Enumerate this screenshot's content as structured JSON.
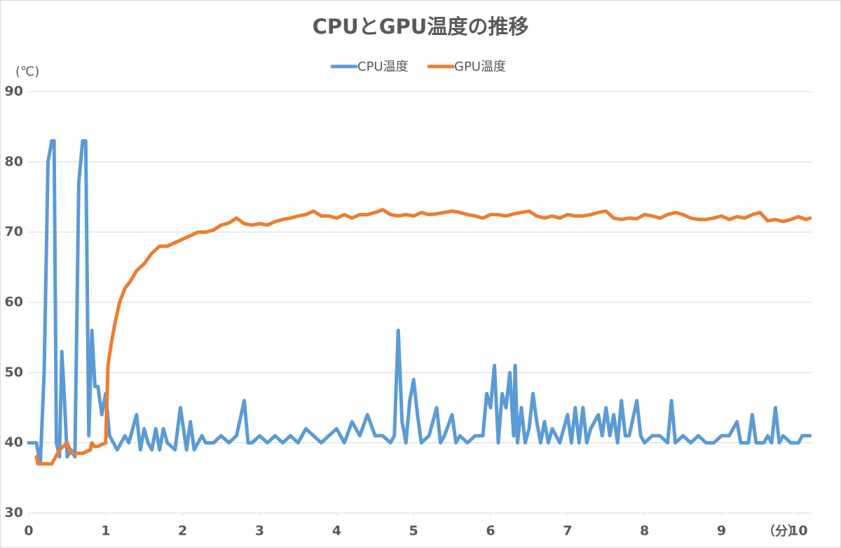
{
  "chart_data": {
    "type": "line",
    "title": "CPUとGPU温度の推移",
    "y_label": "(℃)",
    "x_label": "（分）",
    "xlim": [
      0,
      10.17
    ],
    "ylim": [
      30,
      90
    ],
    "xticks": [
      0,
      1,
      2,
      3,
      4,
      5,
      6,
      7,
      8,
      9,
      10
    ],
    "yticks": [
      30,
      40,
      50,
      60,
      70,
      80,
      90
    ],
    "grid": true,
    "legend": "top",
    "series": [
      {
        "name": "CPU温度",
        "color": "#5b9bd5",
        "x": [
          0.0,
          0.1,
          0.15,
          0.2,
          0.25,
          0.3,
          0.33,
          0.36,
          0.4,
          0.43,
          0.46,
          0.5,
          0.55,
          0.6,
          0.65,
          0.7,
          0.74,
          0.78,
          0.82,
          0.86,
          0.9,
          0.95,
          1.0,
          1.05,
          1.1,
          1.15,
          1.2,
          1.25,
          1.3,
          1.4,
          1.45,
          1.5,
          1.55,
          1.6,
          1.65,
          1.7,
          1.75,
          1.8,
          1.9,
          1.97,
          2.05,
          2.1,
          2.15,
          2.2,
          2.25,
          2.3,
          2.4,
          2.5,
          2.6,
          2.7,
          2.8,
          2.85,
          2.9,
          3.0,
          3.1,
          3.2,
          3.3,
          3.4,
          3.5,
          3.6,
          3.7,
          3.8,
          3.9,
          4.0,
          4.1,
          4.2,
          4.3,
          4.4,
          4.5,
          4.6,
          4.7,
          4.75,
          4.8,
          4.85,
          4.9,
          4.95,
          5.0,
          5.05,
          5.1,
          5.2,
          5.3,
          5.35,
          5.4,
          5.5,
          5.55,
          5.6,
          5.7,
          5.8,
          5.9,
          5.95,
          6.0,
          6.05,
          6.1,
          6.15,
          6.2,
          6.25,
          6.3,
          6.32,
          6.35,
          6.4,
          6.45,
          6.5,
          6.55,
          6.6,
          6.65,
          6.7,
          6.75,
          6.8,
          6.85,
          6.9,
          7.0,
          7.05,
          7.1,
          7.15,
          7.2,
          7.25,
          7.3,
          7.4,
          7.45,
          7.5,
          7.55,
          7.6,
          7.65,
          7.7,
          7.75,
          7.8,
          7.9,
          7.95,
          8.0,
          8.1,
          8.2,
          8.3,
          8.35,
          8.4,
          8.5,
          8.6,
          8.7,
          8.8,
          8.9,
          9.0,
          9.1,
          9.2,
          9.25,
          9.35,
          9.4,
          9.45,
          9.55,
          9.6,
          9.65,
          9.7,
          9.75,
          9.8,
          9.9,
          10.0,
          10.05,
          10.15
        ],
        "values": [
          40,
          40,
          37,
          50,
          80,
          83,
          83,
          40,
          38,
          53,
          47,
          38,
          39,
          38,
          77,
          83,
          83,
          41,
          56,
          48,
          48,
          44,
          47,
          41,
          40,
          39,
          40,
          41,
          40,
          44,
          39,
          42,
          40,
          39,
          42,
          39,
          42,
          40,
          39,
          45,
          39,
          43,
          39,
          40,
          41,
          40,
          40,
          41,
          40,
          41,
          46,
          40,
          40,
          41,
          40,
          41,
          40,
          41,
          40,
          42,
          41,
          40,
          41,
          42,
          40,
          43,
          41,
          44,
          41,
          41,
          40,
          41,
          56,
          43,
          40,
          46,
          49,
          44,
          40,
          41,
          45,
          40,
          41,
          44,
          40,
          41,
          40,
          41,
          41,
          47,
          45,
          51,
          40,
          47,
          45,
          50,
          41,
          51,
          40,
          45,
          40,
          42,
          47,
          43,
          40,
          43,
          40,
          42,
          41,
          40,
          44,
          40,
          45,
          40,
          45,
          40,
          42,
          44,
          41,
          45,
          41,
          44,
          40,
          46,
          41,
          41,
          46,
          41,
          40,
          41,
          41,
          40,
          46,
          40,
          41,
          40,
          41,
          40,
          40,
          41,
          41,
          43,
          40,
          40,
          44,
          40,
          40,
          41,
          40,
          45,
          40,
          41,
          40,
          40,
          41,
          41
        ]
      },
      {
        "name": "GPU温度",
        "color": "#ed7d31",
        "x": [
          0.1,
          0.12,
          0.2,
          0.3,
          0.35,
          0.4,
          0.5,
          0.55,
          0.6,
          0.7,
          0.8,
          0.82,
          0.85,
          0.9,
          1.0,
          1.03,
          1.07,
          1.12,
          1.18,
          1.25,
          1.32,
          1.4,
          1.5,
          1.6,
          1.7,
          1.8,
          1.9,
          2.0,
          2.1,
          2.2,
          2.3,
          2.4,
          2.5,
          2.6,
          2.7,
          2.8,
          2.9,
          3.0,
          3.1,
          3.2,
          3.3,
          3.4,
          3.5,
          3.6,
          3.7,
          3.8,
          3.9,
          4.0,
          4.1,
          4.2,
          4.3,
          4.4,
          4.5,
          4.6,
          4.7,
          4.8,
          4.9,
          5.0,
          5.1,
          5.2,
          5.3,
          5.4,
          5.5,
          5.6,
          5.7,
          5.8,
          5.9,
          6.0,
          6.1,
          6.2,
          6.3,
          6.4,
          6.5,
          6.6,
          6.7,
          6.8,
          6.9,
          7.0,
          7.1,
          7.2,
          7.3,
          7.4,
          7.5,
          7.6,
          7.7,
          7.8,
          7.9,
          8.0,
          8.1,
          8.2,
          8.3,
          8.4,
          8.5,
          8.6,
          8.7,
          8.8,
          8.9,
          9.0,
          9.1,
          9.2,
          9.3,
          9.4,
          9.5,
          9.6,
          9.7,
          9.8,
          9.9,
          10.0,
          10.1,
          10.15
        ],
        "values": [
          38,
          37,
          37,
          37,
          38,
          39,
          40,
          38.5,
          38.5,
          38.5,
          39,
          40,
          39.5,
          39.5,
          40,
          51,
          54,
          57,
          60,
          62,
          63,
          64.5,
          65.5,
          67,
          68,
          68,
          68.5,
          69,
          69.5,
          70,
          70,
          70.3,
          71,
          71.3,
          72,
          71.2,
          71,
          71.2,
          71,
          71.5,
          71.8,
          72,
          72.3,
          72.5,
          73,
          72.3,
          72.3,
          72,
          72.5,
          72,
          72.5,
          72.5,
          72.8,
          73.2,
          72.5,
          72.3,
          72.5,
          72.3,
          72.8,
          72.5,
          72.6,
          72.8,
          73,
          72.8,
          72.5,
          72.3,
          72,
          72.5,
          72.5,
          72.3,
          72.6,
          72.8,
          73,
          72.3,
          72,
          72.3,
          72,
          72.5,
          72.3,
          72.3,
          72.5,
          72.8,
          73,
          72,
          71.8,
          72,
          71.9,
          72.5,
          72.3,
          72,
          72.5,
          72.8,
          72.5,
          72,
          71.8,
          71.8,
          72,
          72.3,
          71.8,
          72.2,
          72,
          72.5,
          72.8,
          71.6,
          71.8,
          71.5,
          71.8,
          72.2,
          71.8,
          72
        ]
      }
    ]
  }
}
